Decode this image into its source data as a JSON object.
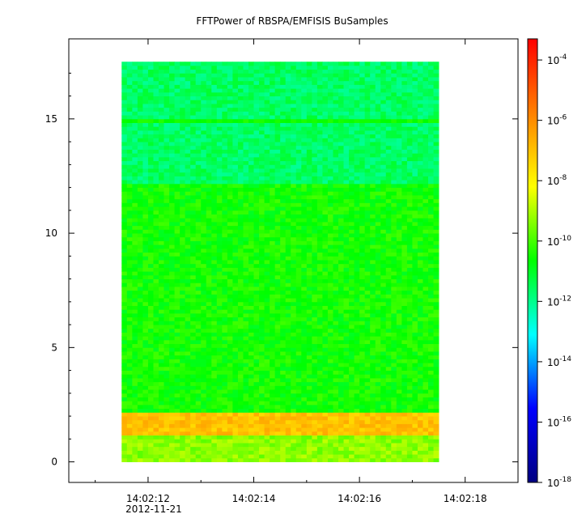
{
  "chart_data": {
    "type": "heatmap",
    "title": "FFTPower of RBSPA/EMFISIS  BuSamples",
    "xlabel": "",
    "ylabel": "",
    "x_ticks": [
      {
        "value": "14:02:12",
        "sublabel": "2012-11-21"
      },
      {
        "value": "14:02:14",
        "sublabel": ""
      },
      {
        "value": "14:02:16",
        "sublabel": ""
      },
      {
        "value": "14:02:18",
        "sublabel": ""
      }
    ],
    "x_range_seconds_from_140212": [
      -1.5,
      7.0
    ],
    "data_x_range_seconds_from_140212": [
      -0.5,
      5.5
    ],
    "y_ticks": [
      "0",
      "5",
      "10",
      "15"
    ],
    "y_range": [
      -0.9,
      18.5
    ],
    "data_y_range": [
      0,
      17.5
    ],
    "colorbar": {
      "scale": "log",
      "range_exp": [
        -18,
        -3.3
      ],
      "ticks": [
        {
          "base": "10",
          "exp": "-4"
        },
        {
          "base": "10",
          "exp": "-6"
        },
        {
          "base": "10",
          "exp": "-8"
        },
        {
          "base": "10",
          "exp": "-10"
        },
        {
          "base": "10",
          "exp": "-12"
        },
        {
          "base": "10",
          "exp": "-14"
        },
        {
          "base": "10",
          "exp": "-16"
        },
        {
          "base": "10",
          "exp": "-18"
        }
      ],
      "colormap": [
        "#000080",
        "#0000ff",
        "#00ffff",
        "#00ff00",
        "#ffff00",
        "#ff8000",
        "#ff0000"
      ]
    },
    "bands": [
      {
        "y_from": 0,
        "y_to": 1.2,
        "log10_power": -9.3
      },
      {
        "y_from": 1.2,
        "y_to": 2.1,
        "log10_power": -7.0
      },
      {
        "y_from": 2.1,
        "y_to": 12.2,
        "log10_power": -10.5
      },
      {
        "y_from": 12.2,
        "y_to": 17.5,
        "log10_power": -11.6
      }
    ],
    "lines": [
      {
        "y": 14.95,
        "log10_power": -10.5
      }
    ]
  }
}
